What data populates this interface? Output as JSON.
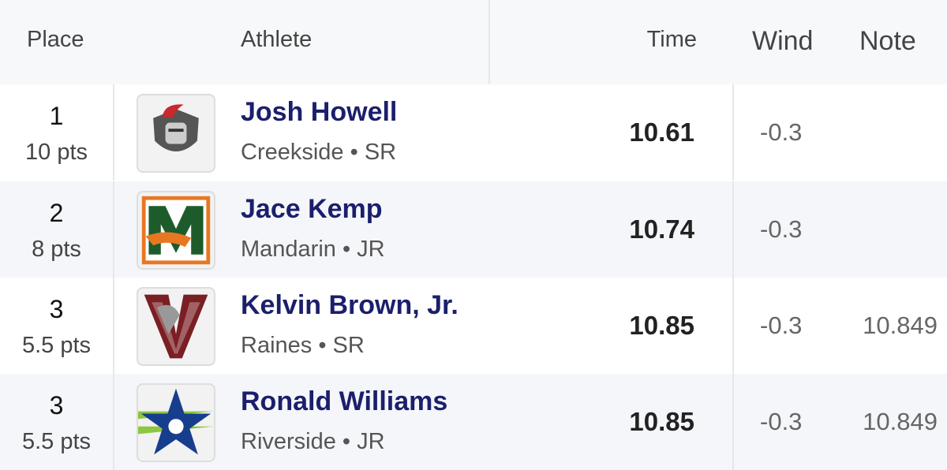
{
  "header": {
    "place": "Place",
    "athlete": "Athlete",
    "time": "Time",
    "wind": "Wind",
    "note": "Note"
  },
  "rows": [
    {
      "place": 1,
      "points": "10 pts",
      "name": "Josh Howell",
      "school": "Creekside • SR",
      "time": 10.61,
      "wind": -0.3,
      "note": null
    },
    {
      "place": 2,
      "points": "8 pts",
      "name": "Jace Kemp",
      "school": "Mandarin • JR",
      "time": 10.74,
      "wind": -0.3,
      "note": null
    },
    {
      "place": 3,
      "points": "5.5 pts",
      "name": "Kelvin Brown, Jr.",
      "school": "Raines • SR",
      "time": 10.85,
      "wind": -0.3,
      "note": 10.849
    },
    {
      "place": 3,
      "points": "5.5 pts",
      "name": "Ronald Williams",
      "school": "Riverside • JR",
      "time": 10.85,
      "wind": -0.3,
      "note": 10.849
    }
  ]
}
